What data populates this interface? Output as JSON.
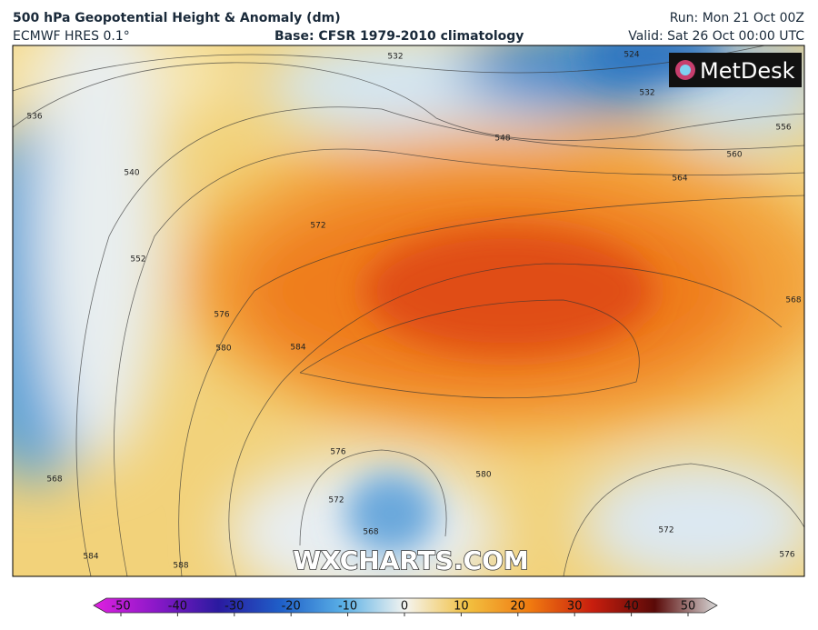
{
  "header": {
    "title": "500 hPa Geopotential Height & Anomaly (dm)",
    "model": "ECMWF HRES 0.1°",
    "base": "Base: CFSR 1979-2010 climatology",
    "run": "Run: Mon 21 Oct 00Z",
    "valid": "Valid: Sat 26 Oct 00:00 UTC"
  },
  "logo": "MetDesk",
  "watermark": "WXCHARTS.COM",
  "contour_labels": [
    "532",
    "524",
    "536",
    "532",
    "548",
    "556",
    "560",
    "564",
    "540",
    "552",
    "572",
    "576",
    "580",
    "584",
    "568",
    "568",
    "576",
    "572",
    "568",
    "580",
    "572",
    "576",
    "584",
    "588"
  ],
  "colorbar": {
    "ticks": [
      -50,
      -40,
      -30,
      -20,
      -10,
      0,
      10,
      20,
      30,
      40,
      50
    ]
  }
}
